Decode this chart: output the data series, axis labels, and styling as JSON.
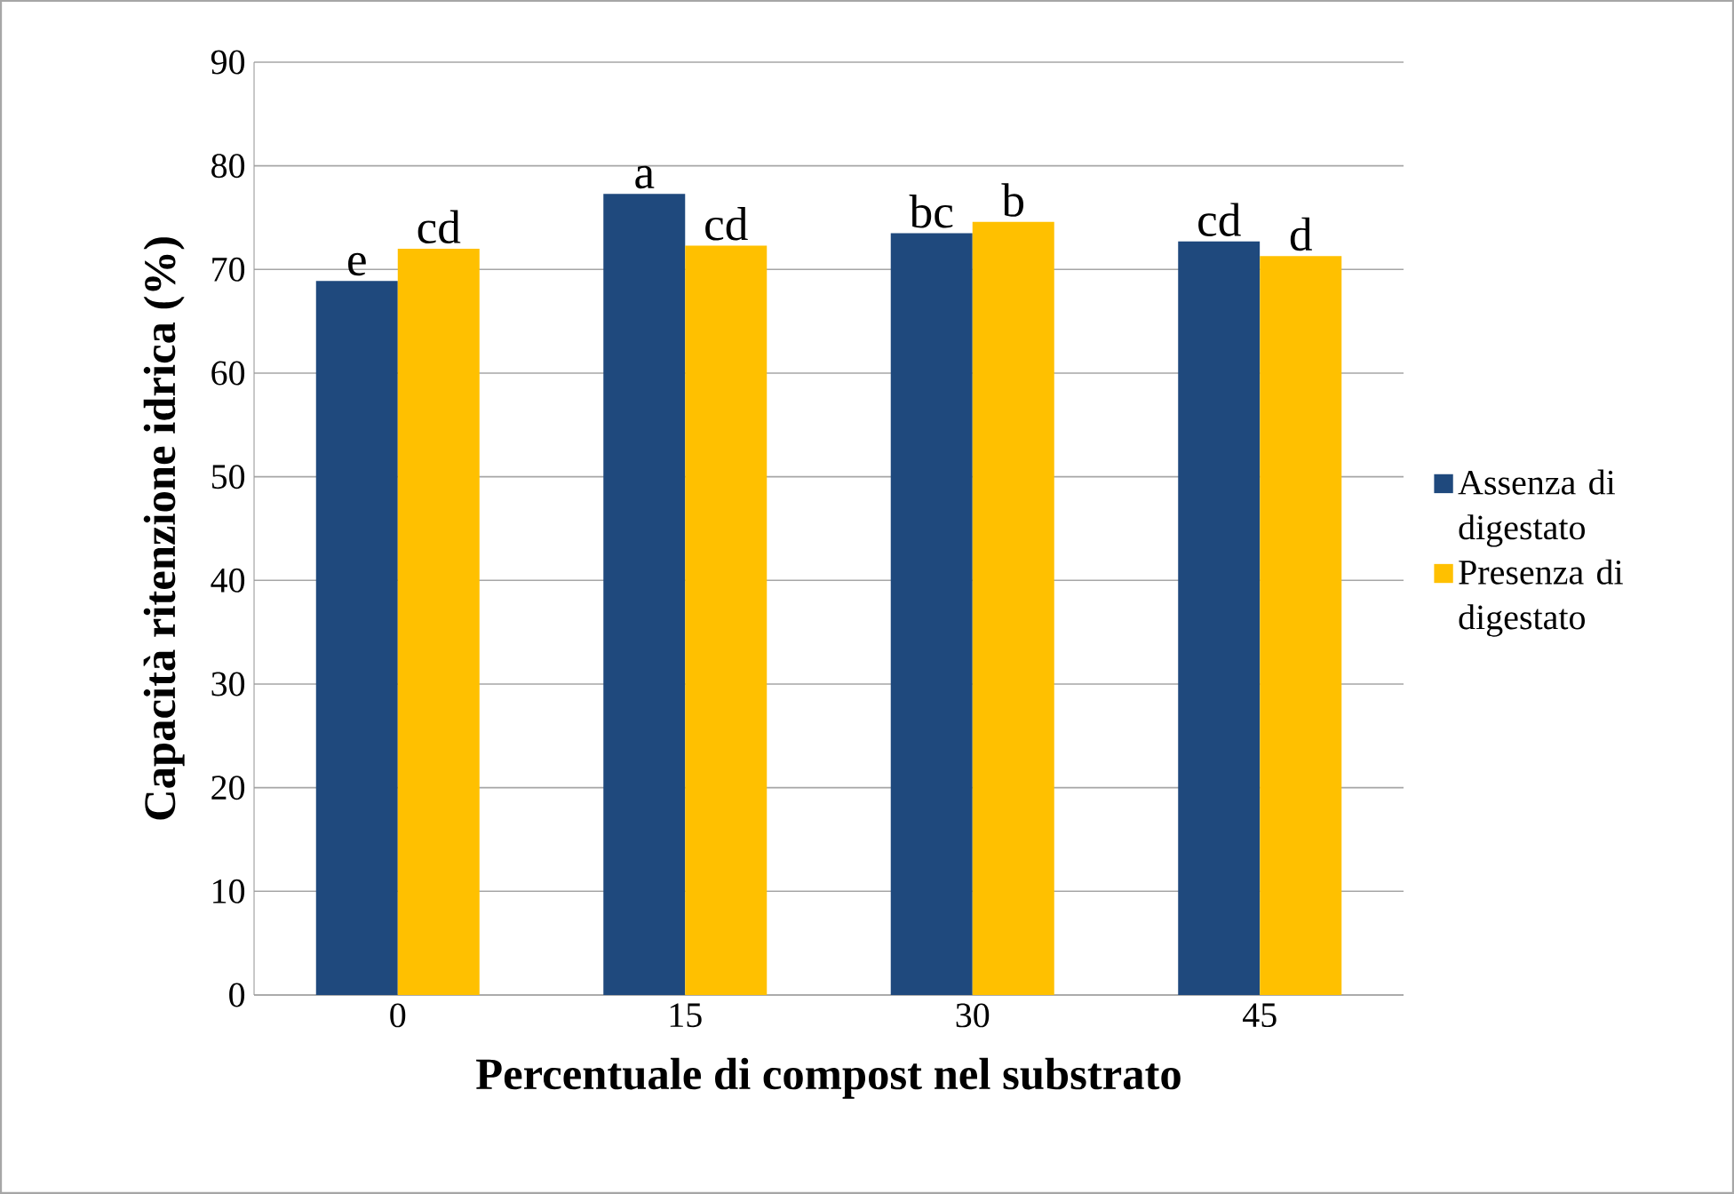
{
  "chart_data": {
    "type": "bar",
    "xlabel": "Percentuale di compost nel substrato",
    "ylabel": "Capacità ritenzione idrica (%)",
    "categories": [
      "0",
      "15",
      "30",
      "45"
    ],
    "series": [
      {
        "name": "Assenza di digestato",
        "color": "#1f497d",
        "values": [
          68.9,
          77.3,
          73.5,
          72.7
        ]
      },
      {
        "name": "Presenza di digestato",
        "color": "#ffc000",
        "values": [
          72.0,
          72.3,
          74.6,
          71.3
        ]
      }
    ],
    "ylim": [
      0,
      90
    ],
    "yticks": [
      0,
      10,
      20,
      30,
      40,
      50,
      60,
      70,
      80,
      90
    ],
    "grid": "y",
    "legend": "right",
    "annotations": [
      {
        "text": "e",
        "x": "0",
        "y": 68.9
      },
      {
        "text": "cd",
        "x": "0",
        "y": 72.0
      },
      {
        "text": "a",
        "x": "15",
        "y": 77.3
      },
      {
        "text": "cd",
        "x": "15",
        "y": 72.3
      },
      {
        "text": "bc",
        "x": "30",
        "y": 73.5
      },
      {
        "text": "b",
        "x": "30",
        "y": 74.6
      },
      {
        "text": "cd",
        "x": "45",
        "y": 72.7
      },
      {
        "text": "d",
        "x": "45",
        "y": 71.3
      }
    ]
  }
}
